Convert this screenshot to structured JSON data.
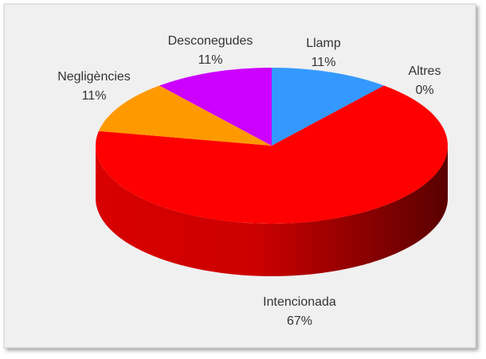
{
  "chart_data": {
    "type": "pie",
    "categories": [
      "Llamp",
      "Altres",
      "Intencionada",
      "Negligències",
      "Desconegudes"
    ],
    "values": [
      11,
      0,
      67,
      11,
      11
    ],
    "value_labels": [
      "11%",
      "0%",
      "67%",
      "11%",
      "11%"
    ],
    "colors": [
      "#3399ff",
      "#33cc33",
      "#ff0000",
      "#ff9900",
      "#cc00ff"
    ]
  }
}
